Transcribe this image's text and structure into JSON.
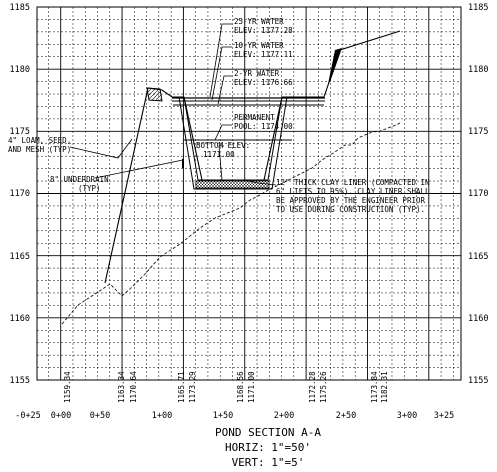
{
  "title": {
    "line1": "POND SECTION A-A",
    "line2": "HORIZ: 1\"=50'",
    "line3": "VERT: 1\"=5'"
  },
  "elevation_ticks": [
    "1185",
    "1180",
    "1175",
    "1170",
    "1165",
    "1160",
    "1155"
  ],
  "station_ticks": [
    "-0+25",
    "0+00",
    "0+50",
    "1+00",
    "1+50",
    "2+00",
    "2+50",
    "3+00",
    "3+25"
  ],
  "station_grade_values": [
    "1159.34",
    "1163.34",
    "1170.64",
    "1165.71",
    "1173.29",
    "1168.56",
    "1171.00",
    "1172.28",
    "1175.26",
    "1173.84",
    "1182.31"
  ],
  "callouts": {
    "water_25yr": [
      "25-YR WATER",
      "ELEV: 1177.28"
    ],
    "water_10yr": [
      "10-YR WATER",
      "ELEV: 1177.11"
    ],
    "water_2yr": [
      "2-YR WATER",
      "ELEV: 1176.66"
    ],
    "permanent_pool": [
      "PERMANENT",
      "POOL: 1174.00"
    ],
    "bottom_elev": [
      "BOTTOM ELEV:",
      "1171.00"
    ],
    "loam": [
      "4\" LOAM, SEED,",
      "AND MESH (TYP)"
    ],
    "underdrain": [
      "8\" UNDERDRAIN",
      "(TYP)"
    ],
    "clay_liner": [
      "12\" THICK CLAY LINER (COMPACTED IN",
      "6\" LIFTS TO 95%). CLAY LINER SHALL",
      "BE APPROVED BY THE ENGINEER PRIOR",
      "TO USE DURING CONSTRUCTION (TYP)."
    ]
  }
}
